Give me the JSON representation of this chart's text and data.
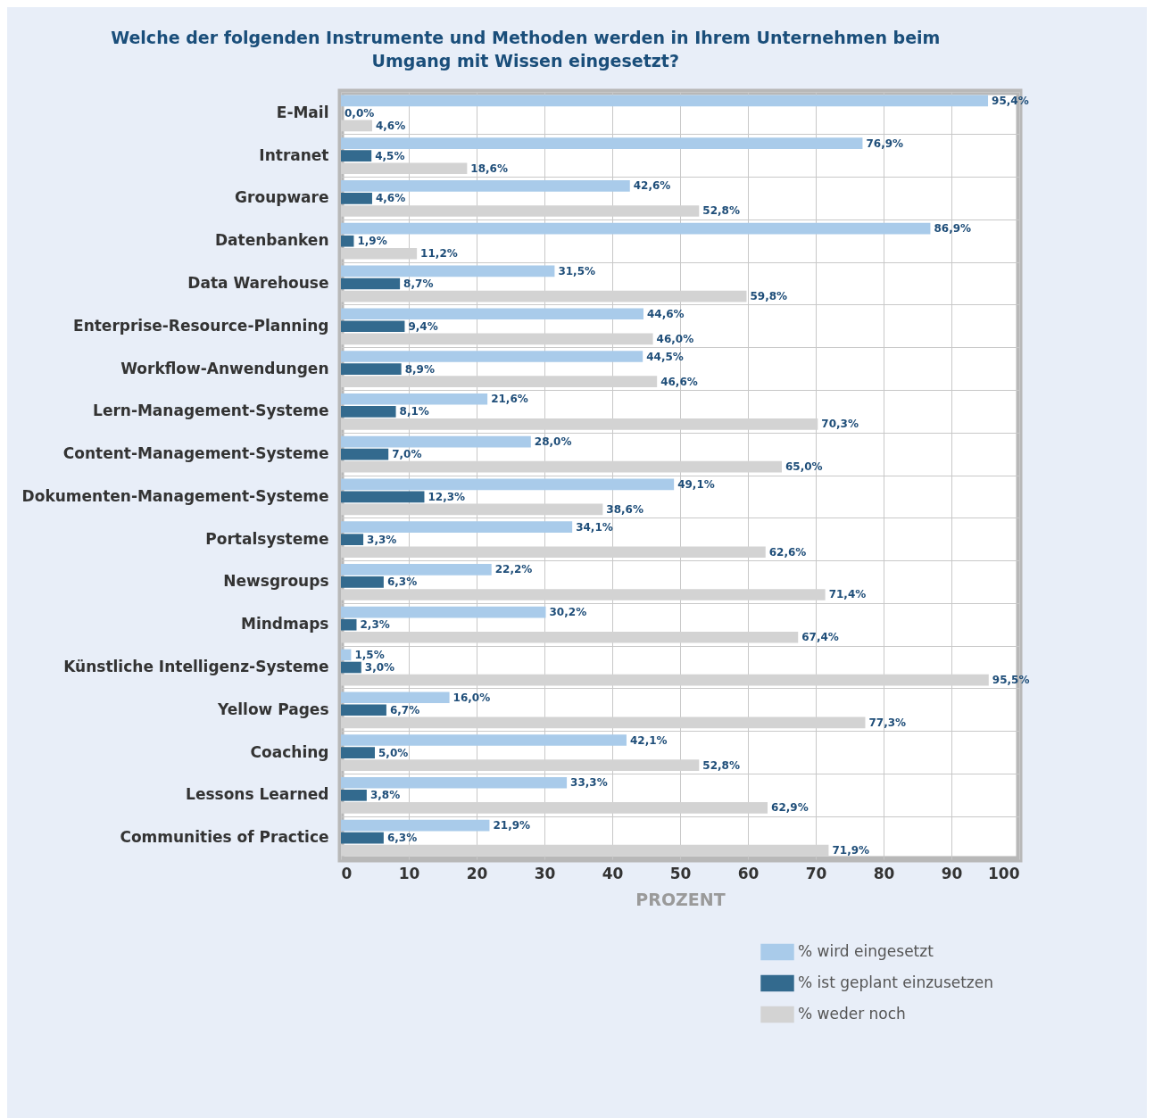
{
  "chart_data": {
    "type": "bar",
    "orientation": "horizontal",
    "title": "Welche der folgenden Instrumente und Methoden werden in Ihrem Unternehmen beim Umgang mit Wissen eingesetzt?",
    "xlabel": "PROZENT",
    "categories": [
      "E-Mail",
      "Intranet",
      "Groupware",
      "Datenbanken",
      "Data Warehouse",
      "Enterprise-Resource-Planning",
      "Workflow-Anwendungen",
      "Lern-Management-Systeme",
      "Content-Management-Systeme",
      "Dokumenten-Management-Systeme",
      "Portalsysteme",
      "Newsgroups",
      "Mindmaps",
      "Künstliche Intelligenz-Systeme",
      "Yellow Pages",
      "Coaching",
      "Lessons Learned",
      "Communities of Practice"
    ],
    "series": [
      {
        "name": "% wird eingesetzt",
        "color": "#a9cbea",
        "values": [
          95.4,
          76.9,
          42.6,
          86.9,
          31.5,
          44.6,
          44.5,
          21.6,
          28.0,
          49.1,
          34.1,
          22.2,
          30.2,
          1.5,
          16.0,
          42.1,
          33.3,
          21.9
        ],
        "value_labels": [
          "95,4%",
          "76,9%",
          "42,6%",
          "86,9%",
          "31,5%",
          "44,6%",
          "44,5%",
          "21,6%",
          "28,0%",
          "49,1%",
          "34,1%",
          "22,2%",
          "30,2%",
          "1,5%",
          "16,0%",
          "42,1%",
          "33,3%",
          "21,9%"
        ]
      },
      {
        "name": "% ist geplant einzusetzen",
        "color": "#336a8e",
        "values": [
          0.0,
          4.5,
          4.6,
          1.9,
          8.7,
          9.4,
          8.9,
          8.1,
          7.0,
          12.3,
          3.3,
          6.3,
          2.3,
          3.0,
          6.7,
          5.0,
          3.8,
          6.3
        ],
        "value_labels": [
          "0,0%",
          "4,5%",
          "4,6%",
          "1,9%",
          "8,7%",
          "9,4%",
          "8,9%",
          "8,1%",
          "7,0%",
          "12,3%",
          "3,3%",
          "6,3%",
          "2,3%",
          "3,0%",
          "6,7%",
          "5,0%",
          "3,8%",
          "6,3%"
        ]
      },
      {
        "name": "% weder noch",
        "color": "#d3d3d3",
        "values": [
          4.6,
          18.6,
          52.8,
          11.2,
          59.8,
          46.0,
          46.6,
          70.3,
          65.0,
          38.6,
          62.6,
          71.4,
          67.4,
          95.5,
          77.3,
          52.8,
          62.9,
          71.9
        ],
        "value_labels": [
          "4,6%",
          "18,6%",
          "52,8%",
          "11,2%",
          "59,8%",
          "46,0%",
          "46,6%",
          "70,3%",
          "65,0%",
          "38,6%",
          "62,6%",
          "71,4%",
          "67,4%",
          "95,5%",
          "77,3%",
          "52,8%",
          "62,9%",
          "71,9%"
        ]
      }
    ],
    "xlim": [
      0,
      100
    ],
    "xticks": [
      0,
      10,
      20,
      30,
      40,
      50,
      60,
      70,
      80,
      90,
      100
    ],
    "grid": true,
    "legend": "bottom right"
  }
}
